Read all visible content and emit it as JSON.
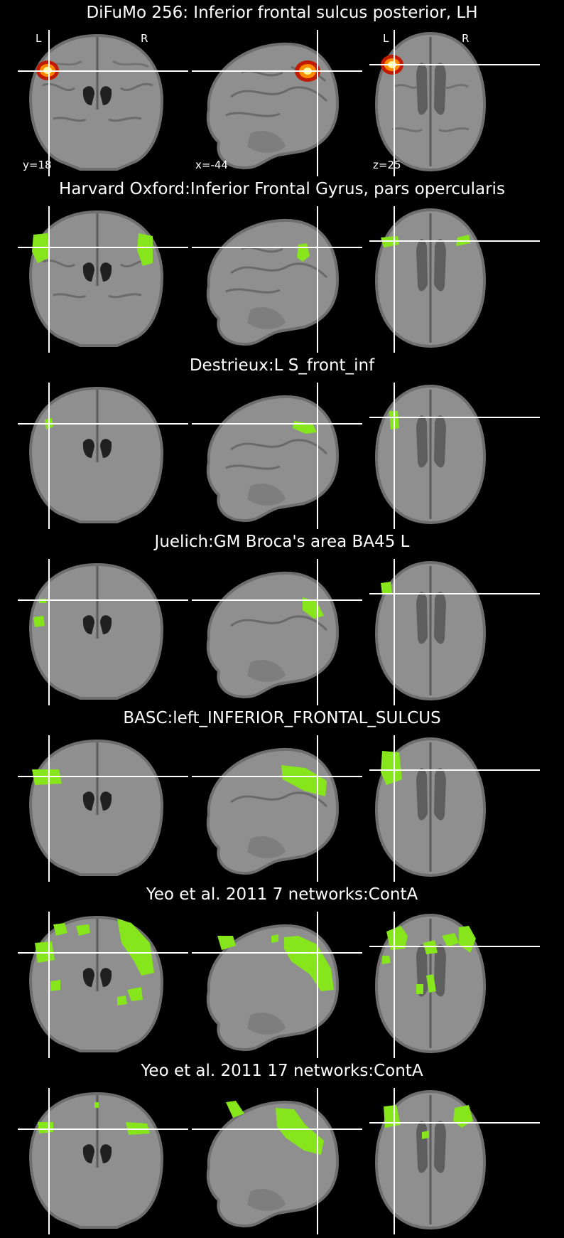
{
  "figure": {
    "sections": [
      {
        "title": "DiFuMo 256: Inferior frontal sulcus posterior, LH",
        "kind": "probability"
      },
      {
        "title": "Harvard Oxford:Inferior Frontal Gyrus, pars opercularis",
        "kind": "atlas"
      },
      {
        "title": "Destrieux:L S_front_inf",
        "kind": "atlas"
      },
      {
        "title": "Juelich:GM Broca's area BA45 L",
        "kind": "atlas"
      },
      {
        "title": "BASC:left_INFERIOR_FRONTAL_SULCUS",
        "kind": "atlas"
      },
      {
        "title": "Yeo et al. 2011 7 networks:ContA",
        "kind": "atlas"
      },
      {
        "title": "Yeo et al. 2011 17 networks:ContA",
        "kind": "atlas"
      }
    ],
    "orientation_labels": {
      "left": "L",
      "right": "R"
    },
    "coordinates": {
      "coronal": "y=18",
      "sagittal": "x=-44",
      "axial": "z=25"
    },
    "colors": {
      "background": "#000000",
      "brain": "#8f8f8f",
      "brain_edge": "#6f6f6f",
      "crosshair": "#ffffff",
      "overlay": "#86e51b",
      "hot_outer": "#c11a00",
      "hot_mid": "#ff8c00",
      "hot_inner": "#ffff9a"
    }
  }
}
